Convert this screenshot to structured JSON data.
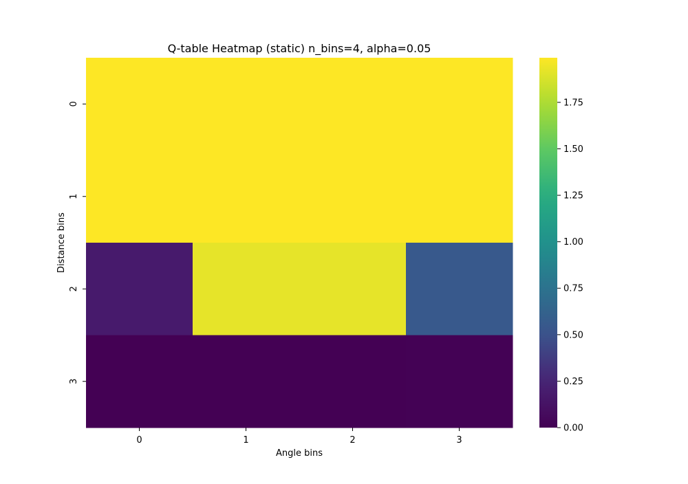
{
  "chart_data": {
    "type": "heatmap",
    "title": "Q-table Heatmap (static) n_bins=4, alpha=0.05",
    "xlabel": "Angle bins",
    "ylabel": "Distance bins",
    "x_categories": [
      "0",
      "1",
      "2",
      "3"
    ],
    "y_categories": [
      "0",
      "1",
      "2",
      "3"
    ],
    "values": [
      [
        1.99,
        1.99,
        1.99,
        1.99
      ],
      [
        1.99,
        1.99,
        1.99,
        1.99
      ],
      [
        0.18,
        1.92,
        1.92,
        0.55
      ],
      [
        0.0,
        0.0,
        0.0,
        0.01
      ]
    ],
    "colormap": "viridis",
    "colorbar": {
      "vmin": 0.0,
      "vmax": 1.99,
      "ticks": [
        0.0,
        0.25,
        0.5,
        0.75,
        1.0,
        1.25,
        1.5,
        1.75
      ],
      "tick_labels": [
        "0.00",
        "0.25",
        "0.50",
        "0.75",
        "1.00",
        "1.25",
        "1.50",
        "1.75"
      ]
    },
    "grid": false
  }
}
